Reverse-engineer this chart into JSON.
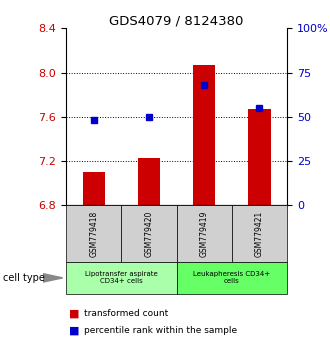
{
  "title": "GDS4079 / 8124380",
  "samples": [
    "GSM779418",
    "GSM779420",
    "GSM779419",
    "GSM779421"
  ],
  "red_values": [
    7.105,
    7.225,
    8.065,
    7.675
  ],
  "blue_values_pct": [
    48,
    50,
    68,
    55
  ],
  "ymin": 6.8,
  "ymax": 8.4,
  "yticks_left": [
    6.8,
    7.2,
    7.6,
    8.0,
    8.4
  ],
  "yticks_right": [
    0,
    25,
    50,
    75,
    100
  ],
  "bar_color": "#cc0000",
  "square_color": "#0000cc",
  "cell_type_label": "cell type",
  "cell_type_color1": "#aaffaa",
  "cell_type_color2": "#66ff66",
  "cell_type_text1": "Lipotransfer aspirate\nCD34+ cells",
  "cell_type_text2": "Leukapheresis CD34+\ncells",
  "legend_red": "transformed count",
  "legend_blue": "percentile rank within the sample",
  "gridline_values": [
    7.2,
    7.6,
    8.0
  ],
  "bar_width": 0.4
}
